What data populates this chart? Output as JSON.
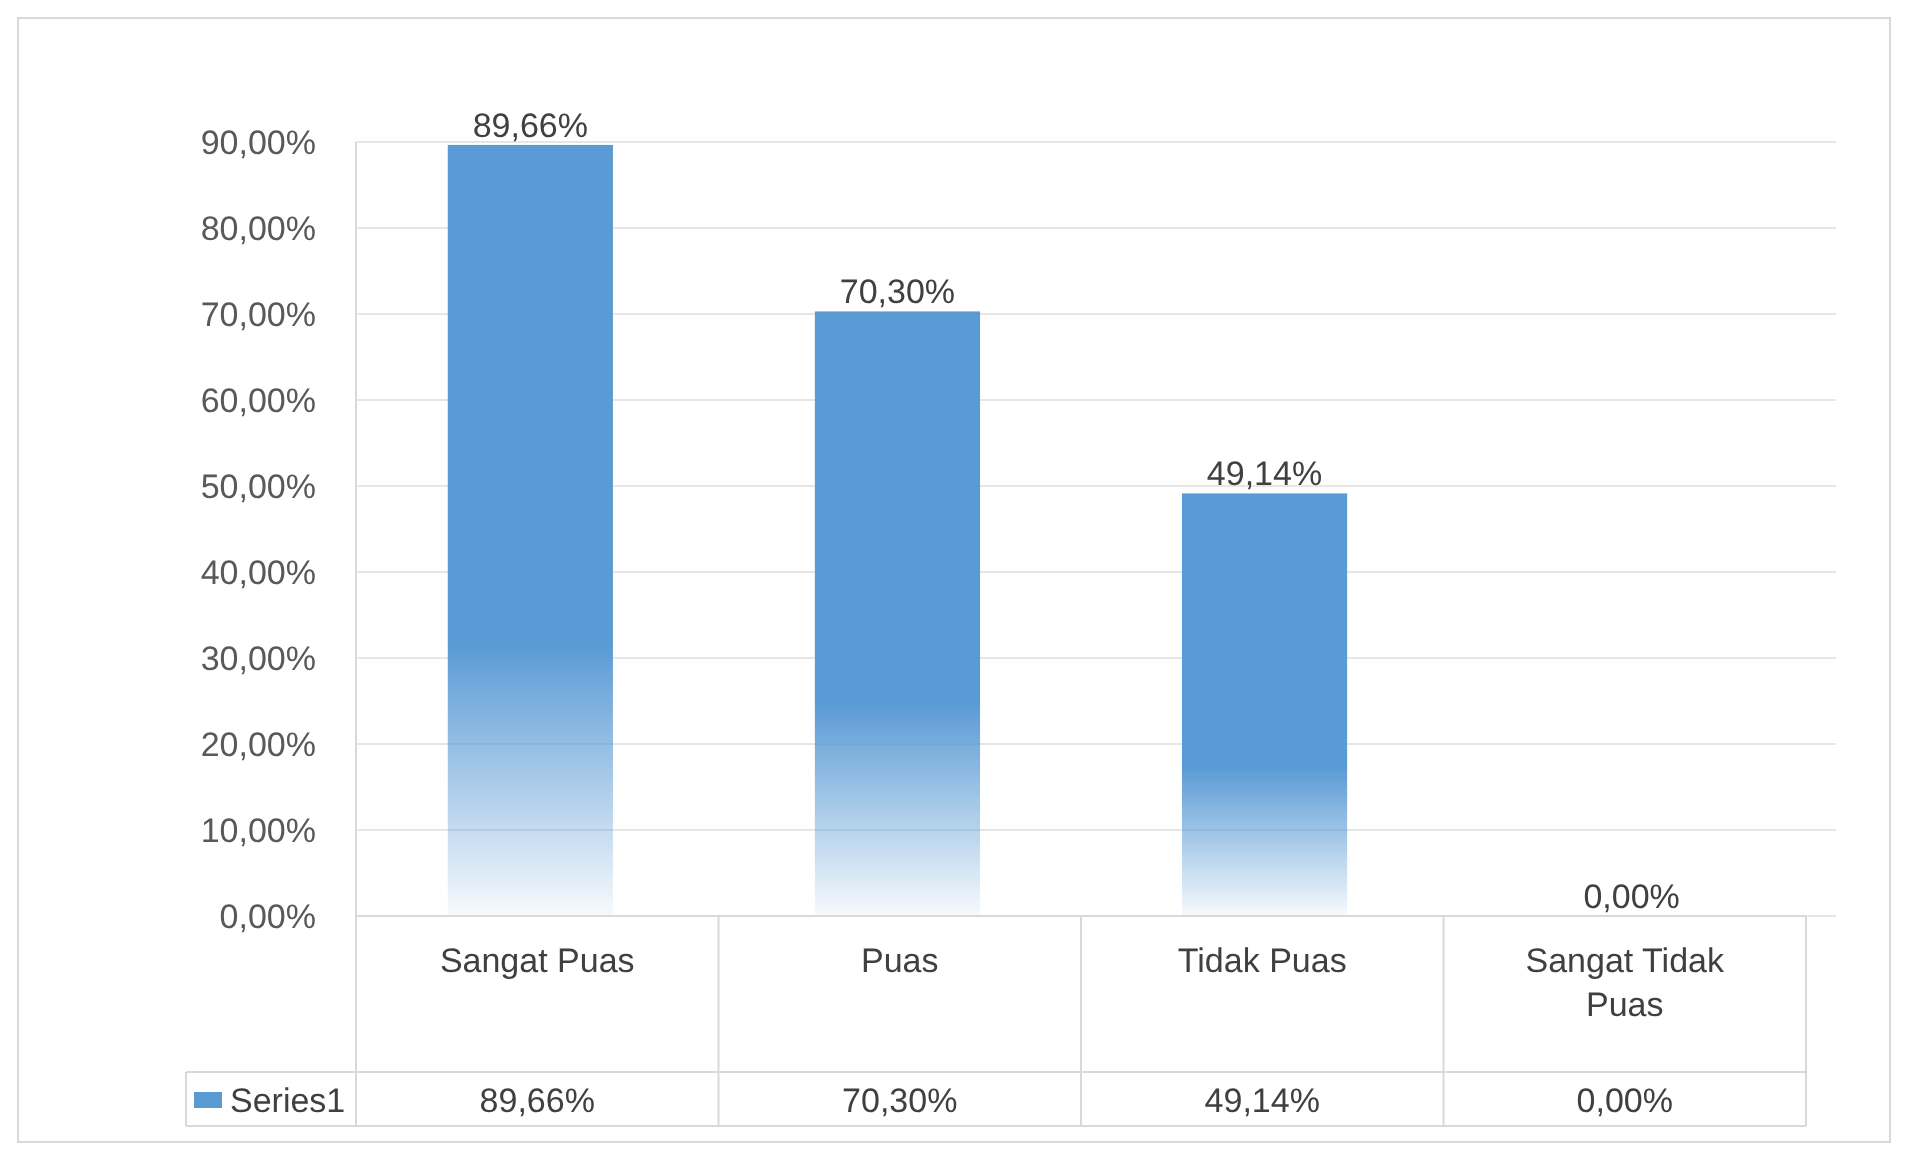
{
  "chart_data": {
    "type": "bar",
    "categories": [
      "Sangat Puas",
      "Puas",
      "Tidak Puas",
      "Sangat Tidak Puas"
    ],
    "series": [
      {
        "name": "Series1",
        "color": "#5b9bd5",
        "values": [
          89.66,
          70.3,
          49.14,
          0.0
        ],
        "value_labels": [
          "89,66%",
          "70,30%",
          "49,14%",
          "0,00%"
        ]
      }
    ],
    "ylim": [
      0,
      90
    ],
    "yticks": [
      {
        "value": 0,
        "label": "0,00%"
      },
      {
        "value": 10,
        "label": "10,00%"
      },
      {
        "value": 20,
        "label": "20,00%"
      },
      {
        "value": 30,
        "label": "30,00%"
      },
      {
        "value": 40,
        "label": "40,00%"
      },
      {
        "value": 50,
        "label": "50,00%"
      },
      {
        "value": 60,
        "label": "60,00%"
      },
      {
        "value": 70,
        "label": "70,00%"
      },
      {
        "value": 80,
        "label": "80,00%"
      },
      {
        "value": 90,
        "label": "90,00%"
      }
    ],
    "grid": "y",
    "legend": "bottom"
  }
}
